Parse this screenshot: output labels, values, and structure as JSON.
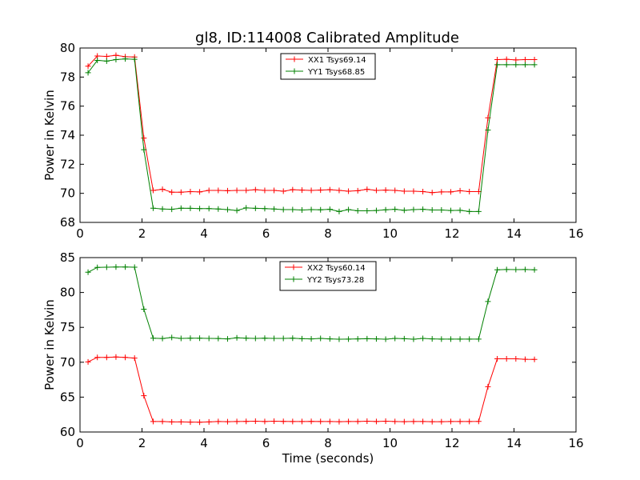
{
  "figure": {
    "title": "gl8, ID:114008 Calibrated Amplitude"
  },
  "chart_data": [
    {
      "type": "line",
      "title": "gl8, ID:114008 Calibrated Amplitude",
      "xlabel": "",
      "ylabel": "Power in Kelvin",
      "xlim": [
        0,
        16
      ],
      "ylim": [
        68,
        80
      ],
      "xticks": [
        "0",
        "2",
        "4",
        "6",
        "8",
        "10",
        "12",
        "14",
        "16"
      ],
      "yticks": [
        "68",
        "70",
        "72",
        "74",
        "76",
        "78",
        "80"
      ],
      "grid": false,
      "legend_position": "top-center",
      "x": [
        0.26,
        0.56,
        0.86,
        1.16,
        1.46,
        1.76,
        2.06,
        2.36,
        2.66,
        2.96,
        3.26,
        3.56,
        3.86,
        4.16,
        4.46,
        4.76,
        5.06,
        5.36,
        5.66,
        5.96,
        6.26,
        6.56,
        6.86,
        7.16,
        7.46,
        7.76,
        8.06,
        8.36,
        8.66,
        8.96,
        9.26,
        9.56,
        9.86,
        10.16,
        10.46,
        10.76,
        11.06,
        11.36,
        11.66,
        11.96,
        12.26,
        12.56,
        12.86,
        13.16,
        13.46,
        13.76,
        14.06,
        14.36,
        14.66
      ],
      "series": [
        {
          "name": "XX1 Tsys69.14",
          "color": "#ff0000",
          "values": [
            78.75,
            79.45,
            79.42,
            79.5,
            79.4,
            79.38,
            73.8,
            70.2,
            70.28,
            70.08,
            70.08,
            70.12,
            70.1,
            70.2,
            70.2,
            70.18,
            70.2,
            70.2,
            70.25,
            70.2,
            70.2,
            70.15,
            70.25,
            70.22,
            70.2,
            70.22,
            70.25,
            70.2,
            70.15,
            70.18,
            70.28,
            70.2,
            70.22,
            70.2,
            70.15,
            70.15,
            70.12,
            70.05,
            70.1,
            70.1,
            70.18,
            70.12,
            70.12,
            75.2,
            79.2,
            79.22,
            79.18,
            79.2,
            79.2
          ]
        },
        {
          "name": "YY1 Tsys68.85",
          "color": "#008000",
          "values": [
            78.3,
            79.15,
            79.1,
            79.2,
            79.25,
            79.22,
            73.0,
            68.98,
            68.92,
            68.9,
            68.98,
            68.97,
            68.95,
            68.95,
            68.92,
            68.88,
            68.82,
            69.0,
            68.97,
            68.95,
            68.92,
            68.88,
            68.88,
            68.85,
            68.88,
            68.87,
            68.9,
            68.75,
            68.88,
            68.8,
            68.8,
            68.82,
            68.87,
            68.9,
            68.83,
            68.88,
            68.9,
            68.85,
            68.85,
            68.82,
            68.83,
            68.75,
            68.75,
            74.35,
            78.85,
            78.85,
            78.85,
            78.85,
            78.85
          ]
        }
      ]
    },
    {
      "type": "line",
      "title": "",
      "xlabel": "Time (seconds)",
      "ylabel": "Power in Kelvin",
      "xlim": [
        0,
        16
      ],
      "ylim": [
        60,
        85
      ],
      "xticks": [
        "0",
        "2",
        "4",
        "6",
        "8",
        "10",
        "12",
        "14",
        "16"
      ],
      "yticks": [
        "60",
        "65",
        "70",
        "75",
        "80",
        "85"
      ],
      "grid": false,
      "legend_position": "top-center",
      "x": [
        0.26,
        0.56,
        0.86,
        1.16,
        1.46,
        1.76,
        2.06,
        2.36,
        2.66,
        2.96,
        3.26,
        3.56,
        3.86,
        4.16,
        4.46,
        4.76,
        5.06,
        5.36,
        5.66,
        5.96,
        6.26,
        6.56,
        6.86,
        7.16,
        7.46,
        7.76,
        8.06,
        8.36,
        8.66,
        8.96,
        9.26,
        9.56,
        9.86,
        10.16,
        10.46,
        10.76,
        11.06,
        11.36,
        11.66,
        11.96,
        12.26,
        12.56,
        12.86,
        13.16,
        13.46,
        13.76,
        14.06,
        14.36,
        14.66
      ],
      "series": [
        {
          "name": "XX2 Tsys60.14",
          "color": "#ff0000",
          "values": [
            70.05,
            70.7,
            70.7,
            70.75,
            70.7,
            70.6,
            65.2,
            61.5,
            61.5,
            61.45,
            61.45,
            61.42,
            61.4,
            61.45,
            61.5,
            61.48,
            61.5,
            61.52,
            61.55,
            61.5,
            61.55,
            61.52,
            61.5,
            61.5,
            61.52,
            61.5,
            61.5,
            61.48,
            61.5,
            61.5,
            61.55,
            61.5,
            61.55,
            61.5,
            61.48,
            61.5,
            61.5,
            61.48,
            61.48,
            61.5,
            61.5,
            61.5,
            61.52,
            66.5,
            70.5,
            70.5,
            70.5,
            70.42,
            70.4
          ]
        },
        {
          "name": "YY2 Tsys73.28",
          "color": "#008000",
          "values": [
            82.9,
            83.6,
            83.62,
            83.65,
            83.65,
            83.62,
            77.6,
            73.45,
            73.4,
            73.55,
            73.42,
            73.45,
            73.45,
            73.42,
            73.4,
            73.35,
            73.5,
            73.45,
            73.42,
            73.45,
            73.42,
            73.42,
            73.45,
            73.38,
            73.35,
            73.42,
            73.35,
            73.3,
            73.32,
            73.35,
            73.38,
            73.35,
            73.3,
            73.42,
            73.38,
            73.3,
            73.42,
            73.35,
            73.32,
            73.32,
            73.32,
            73.32,
            73.32,
            78.7,
            83.25,
            83.3,
            83.28,
            83.3,
            83.25
          ]
        }
      ]
    }
  ]
}
